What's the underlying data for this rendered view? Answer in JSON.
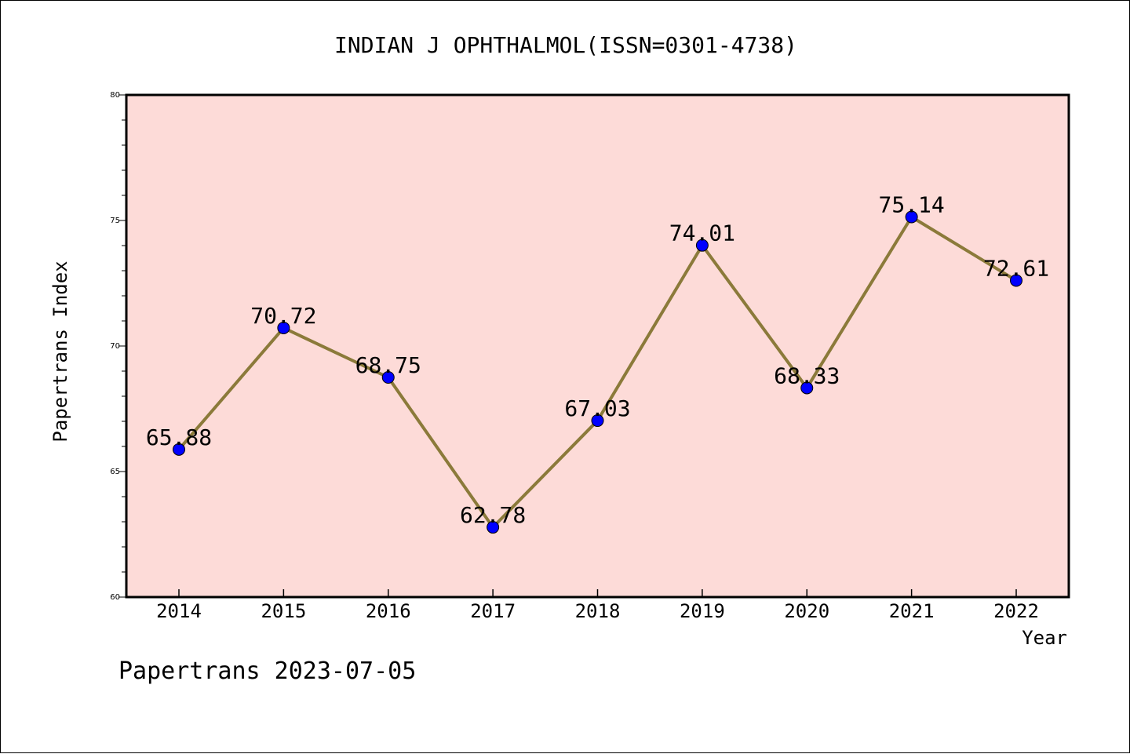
{
  "chart_data": {
    "type": "line",
    "title": "INDIAN J OPHTHALMOL(ISSN=0301-4738)",
    "xlabel": "Year",
    "ylabel": "Papertrans Index",
    "footer": "Papertrans 2023-07-05",
    "categories": [
      "2014",
      "2015",
      "2016",
      "2017",
      "2018",
      "2019",
      "2020",
      "2021",
      "2022"
    ],
    "series": [
      {
        "values": [
          65.88,
          70.72,
          68.75,
          62.78,
          67.03,
          74.01,
          68.33,
          75.14,
          72.61
        ],
        "labels": [
          "65.88",
          "70.72",
          "68.75",
          "62.78",
          "67.03",
          "74.01",
          "68.33",
          "75.14",
          "72.61"
        ],
        "line_color": "#8b7a3a",
        "marker_color": "#0000ff"
      }
    ],
    "ylim": [
      60,
      80
    ],
    "y_ticks": [
      "60",
      "65",
      "70",
      "75",
      "80"
    ],
    "y_tick_values": [
      60,
      65,
      70,
      75,
      80
    ],
    "grid": false,
    "plot_background": "#fddbd8"
  }
}
